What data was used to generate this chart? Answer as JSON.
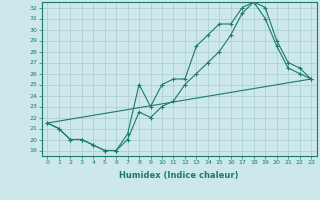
{
  "title": "",
  "xlabel": "Humidex (Indice chaleur)",
  "bg_color": "#cce8ea",
  "line_color": "#1a7a6e",
  "xlim": [
    -0.5,
    23.5
  ],
  "ylim": [
    18.5,
    32.5
  ],
  "xticks": [
    0,
    1,
    2,
    3,
    4,
    5,
    6,
    7,
    8,
    9,
    10,
    11,
    12,
    13,
    14,
    15,
    16,
    17,
    18,
    19,
    20,
    21,
    22,
    23
  ],
  "yticks": [
    19,
    20,
    21,
    22,
    23,
    24,
    25,
    26,
    27,
    28,
    29,
    30,
    31,
    32
  ],
  "line1_x": [
    0,
    1,
    2,
    3,
    4,
    5,
    6,
    7,
    8,
    9,
    10,
    11,
    12,
    13,
    14,
    15,
    16,
    17,
    18,
    19,
    20,
    21,
    22,
    23
  ],
  "line1_y": [
    21.5,
    21.0,
    20.0,
    20.0,
    19.5,
    19.0,
    19.0,
    20.5,
    25.0,
    23.0,
    25.0,
    25.5,
    25.5,
    28.5,
    29.5,
    30.5,
    30.5,
    32.0,
    32.5,
    31.0,
    28.5,
    26.5,
    26.0,
    25.5
  ],
  "line2_x": [
    0,
    1,
    2,
    3,
    4,
    5,
    6,
    7,
    8,
    9,
    10,
    11,
    12,
    13,
    14,
    15,
    16,
    17,
    18,
    19,
    20,
    21,
    22,
    23
  ],
  "line2_y": [
    21.5,
    21.0,
    20.0,
    20.0,
    19.5,
    19.0,
    19.0,
    20.0,
    22.5,
    22.0,
    23.0,
    23.5,
    25.0,
    26.0,
    27.0,
    28.0,
    29.5,
    31.5,
    32.5,
    32.0,
    29.0,
    27.0,
    26.5,
    25.5
  ],
  "line3_x": [
    0,
    23
  ],
  "line3_y": [
    21.5,
    25.5
  ],
  "grid_color": "#aacccc",
  "marker": "+"
}
